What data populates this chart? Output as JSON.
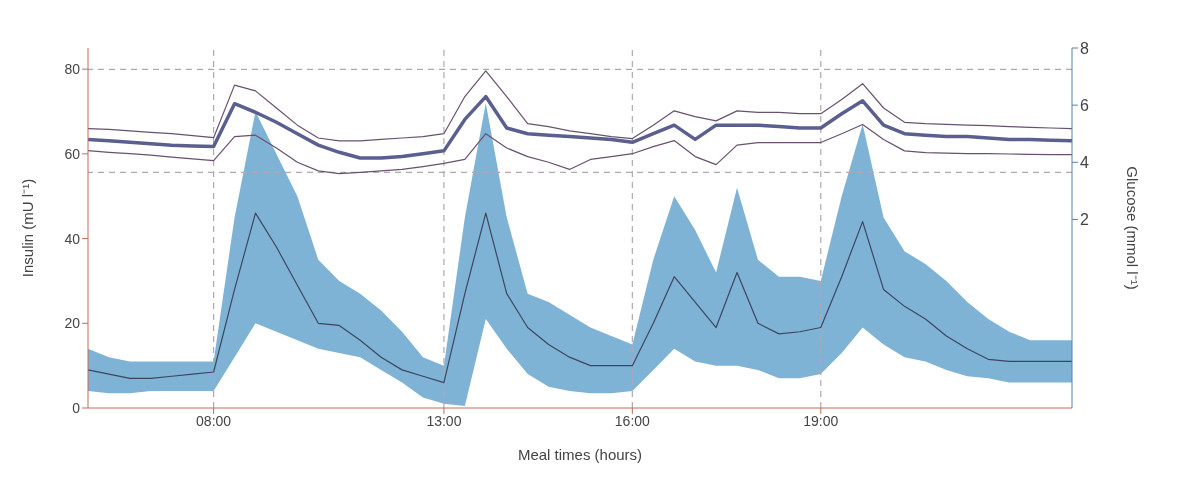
{
  "chart_data": {
    "type": "line",
    "xlabel": "Meal times (hours)",
    "ylabel": "Insulin (mU l⁻¹)",
    "y2label": "Glucose (mmol l⁻¹)",
    "categories": [
      null,
      null,
      null,
      null,
      null,
      null,
      "08:00",
      null,
      null,
      null,
      null,
      null,
      null,
      null,
      null,
      null,
      null,
      "13:00",
      null,
      null,
      null,
      null,
      null,
      null,
      null,
      null,
      "16:00",
      null,
      null,
      null,
      null,
      null,
      null,
      null,
      null,
      "19:00",
      null,
      null,
      null,
      null,
      null,
      null,
      null,
      null,
      null,
      null,
      null,
      null
    ],
    "ylim": [
      0,
      85
    ],
    "yticks": [
      0,
      20,
      40,
      60,
      80
    ],
    "y2lim": [
      -4.6,
      8
    ],
    "y2ticks": [
      2,
      4,
      6,
      8
    ],
    "series": [
      {
        "color": "#3d4660",
        "values": [
          9,
          8,
          7,
          7,
          7.5,
          8,
          8.5,
          28,
          46,
          38,
          29,
          20,
          19.5,
          16,
          12,
          9,
          7.5,
          6,
          27,
          46,
          27,
          19,
          15,
          12,
          10,
          10,
          10,
          20,
          31,
          25,
          19,
          32,
          20,
          17.5,
          18,
          19,
          31,
          44,
          28,
          24,
          21,
          17,
          14,
          11.5,
          11,
          11,
          11,
          11
        ],
        "lower": [
          4,
          3.5,
          3.5,
          4,
          4,
          4,
          4,
          12,
          20,
          18,
          16,
          14,
          13,
          12,
          9,
          6,
          2.5,
          1,
          0.5,
          21,
          14,
          8,
          5,
          4,
          3.5,
          3.5,
          4,
          9,
          14,
          11,
          10,
          10,
          9,
          7,
          7,
          8,
          13,
          19,
          15,
          12,
          11,
          9,
          7.5,
          7,
          6,
          6,
          6,
          6
        ],
        "upper": [
          14,
          12,
          11,
          11,
          11,
          11,
          11,
          45,
          70,
          60,
          50,
          35,
          30,
          27,
          23,
          18,
          12,
          10,
          45,
          72,
          45,
          27,
          25,
          22,
          19,
          17,
          15,
          35,
          50,
          42,
          32,
          52,
          35,
          31,
          31,
          30,
          50,
          67,
          45,
          37,
          34,
          30,
          25,
          21,
          18,
          16,
          16,
          16
        ]
      },
      {
        "axis": "y2",
        "color": "#5b5f8f",
        "values": [
          4.8,
          4.75,
          4.7,
          4.65,
          4.6,
          4.57,
          4.55,
          6.05,
          5.75,
          5.4,
          5.0,
          4.6,
          4.35,
          4.15,
          4.15,
          4.2,
          4.3,
          4.4,
          5.5,
          6.3,
          5.2,
          5.0,
          4.95,
          4.9,
          4.85,
          4.8,
          4.7,
          5.0,
          5.3,
          4.8,
          5.3,
          5.3,
          5.3,
          5.25,
          5.2,
          5.2,
          5.7,
          6.15,
          5.3,
          5.0,
          4.95,
          4.9,
          4.9,
          4.85,
          4.8,
          4.8,
          4.77,
          4.75
        ]
      },
      {
        "axis": "y2",
        "color": "#6a5070",
        "values": [
          5.18,
          5.15,
          5.1,
          5.05,
          5.0,
          4.93,
          4.86,
          6.7,
          6.5,
          5.9,
          5.3,
          4.85,
          4.75,
          4.75,
          4.8,
          4.85,
          4.9,
          5.0,
          6.3,
          7.2,
          6.3,
          5.35,
          5.25,
          5.1,
          5.0,
          4.9,
          4.83,
          5.3,
          5.8,
          5.6,
          5.45,
          5.8,
          5.75,
          5.75,
          5.7,
          5.7,
          6.2,
          6.75,
          5.9,
          5.4,
          5.35,
          5.33,
          5.3,
          5.28,
          5.25,
          5.22,
          5.2,
          5.18
        ]
      },
      {
        "axis": "y2",
        "color": "#6a5070",
        "values": [
          4.41,
          4.35,
          4.3,
          4.25,
          4.18,
          4.12,
          4.06,
          4.9,
          4.95,
          4.5,
          4.0,
          3.7,
          3.6,
          3.65,
          3.7,
          3.75,
          3.85,
          3.96,
          4.1,
          5.0,
          4.5,
          4.2,
          4.0,
          3.75,
          4.1,
          4.2,
          4.3,
          4.55,
          4.76,
          4.2,
          3.92,
          4.6,
          4.69,
          4.69,
          4.69,
          4.69,
          5.0,
          5.32,
          4.8,
          4.4,
          4.34,
          4.32,
          4.3,
          4.3,
          4.29,
          4.28,
          4.27,
          4.27
        ]
      }
    ],
    "ref_lines": [
      {
        "axis": "y2",
        "value": 7.25,
        "color": "#b0a8b0",
        "line_style": "dashed"
      },
      {
        "axis": "y2",
        "value": 3.65,
        "color": "#b0a8b0",
        "line_style": "dashed"
      },
      {
        "axis": "x",
        "value": "08:00",
        "color": "#b0a8b0",
        "line_style": "dashed"
      },
      {
        "axis": "x",
        "value": "13:00",
        "color": "#b0a8b0",
        "line_style": "dashed"
      },
      {
        "axis": "x",
        "value": "16:00",
        "color": "#b0a8b0",
        "line_style": "dashed"
      },
      {
        "axis": "x",
        "value": "19:00",
        "color": "#b0a8b0",
        "line_style": "dashed"
      }
    ]
  }
}
